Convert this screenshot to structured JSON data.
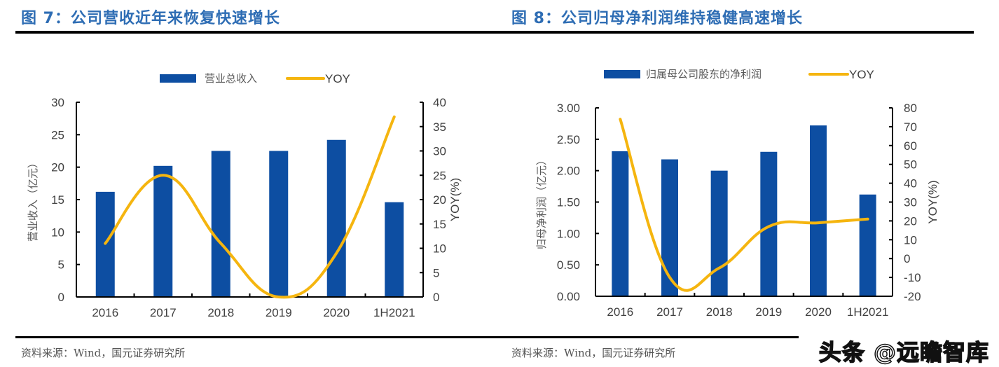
{
  "figures": [
    {
      "title": "图 7：公司营收近年来恢复快速增长",
      "source": "资料来源：Wind，国元证券研究所"
    },
    {
      "title": "图 8：公司归母净利润维持稳健高速增长",
      "source": "资料来源：Wind，国元证券研究所"
    }
  ],
  "watermark": "头条 @远瞻智库",
  "colors": {
    "bar": "#0d4ea2",
    "line": "#f5b50f",
    "title": "#2e6db4"
  },
  "chart_data": [
    {
      "type": "bar",
      "title": "图 7：公司营收近年来恢复快速增长",
      "categories": [
        "2016",
        "2017",
        "2018",
        "2019",
        "2020",
        "1H2021"
      ],
      "series": [
        {
          "name": "营业总收入",
          "type": "bar",
          "axis": "left",
          "values": [
            16.2,
            20.2,
            22.5,
            22.5,
            24.2,
            14.6
          ]
        },
        {
          "name": "YOY",
          "type": "line",
          "axis": "right",
          "values": [
            11,
            25,
            11,
            0,
            9,
            37
          ]
        }
      ],
      "ylabel": "营业收入（亿元）",
      "y2label": "YOY(%)",
      "ylim": [
        0,
        30
      ],
      "y2lim": [
        0,
        40
      ],
      "yticks": [
        "0",
        "5",
        "10",
        "15",
        "20",
        "25",
        "30"
      ],
      "y2ticks": [
        "0",
        "5",
        "10",
        "15",
        "20",
        "25",
        "30",
        "35",
        "40"
      ],
      "legend": "top",
      "grid": false
    },
    {
      "type": "bar",
      "title": "图 8：公司归母净利润维持稳健高速增长",
      "categories": [
        "2016",
        "2017",
        "2018",
        "2019",
        "2020",
        "1H2021"
      ],
      "series": [
        {
          "name": "归属母公司股东的净利润",
          "type": "bar",
          "axis": "left",
          "values": [
            2.31,
            2.18,
            2.0,
            2.3,
            2.72,
            1.62
          ]
        },
        {
          "name": "YOY",
          "type": "line",
          "axis": "right",
          "values": [
            74,
            -10,
            -5,
            17,
            19,
            21
          ]
        }
      ],
      "ylabel": "归母净利润（亿元）",
      "y2label": "YOY(%)",
      "ylim": [
        0,
        3
      ],
      "y2lim": [
        -20,
        80
      ],
      "yticks": [
        "0.00",
        "0.50",
        "1.00",
        "1.50",
        "2.00",
        "2.50",
        "3.00"
      ],
      "y2ticks": [
        "-20",
        "-10",
        "0",
        "10",
        "20",
        "30",
        "40",
        "50",
        "60",
        "70",
        "80"
      ],
      "legend": "top",
      "grid": false
    }
  ]
}
